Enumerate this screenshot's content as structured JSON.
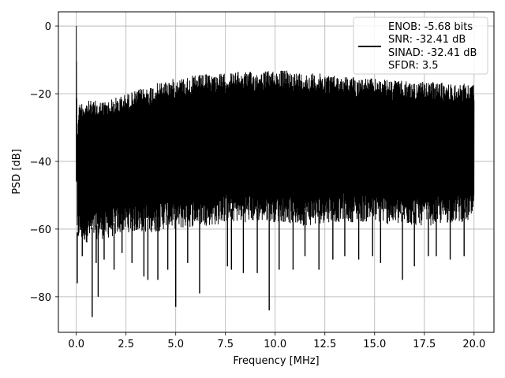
{
  "chart_data": {
    "type": "line",
    "title": "",
    "xlabel": "Frequency [MHz]",
    "ylabel": "PSD [dB]",
    "xlim": [
      -0.9,
      21.0
    ],
    "ylim": [
      -90.5,
      4.2
    ],
    "x_ticks": [
      0.0,
      2.5,
      5.0,
      7.5,
      10.0,
      12.5,
      15.0,
      17.5,
      20.0
    ],
    "x_tick_labels": [
      "0.0",
      "2.5",
      "5.0",
      "7.5",
      "10.0",
      "12.5",
      "15.0",
      "17.5",
      "20.0"
    ],
    "y_ticks": [
      0,
      -20,
      -40,
      -60,
      -80
    ],
    "y_tick_labels": [
      "0",
      "−20",
      "−40",
      "−60",
      "−80"
    ],
    "grid": true,
    "legend_position": "top-right",
    "series": [
      {
        "name": "",
        "color": "#000000",
        "x": [
          0.0,
          0.0,
          0.05,
          0.1,
          0.3,
          0.6,
          1.0,
          1.5,
          2.0,
          2.5,
          3.0,
          3.5,
          4.0,
          4.5,
          5.0,
          5.5,
          6.0,
          7.0,
          7.5,
          8.0,
          9.0,
          10.0,
          10.5,
          11.0,
          12.0,
          12.5,
          13.0,
          14.0,
          15.0,
          16.0,
          17.0,
          18.0,
          19.0,
          20.0
        ],
        "upper": [
          -46,
          0,
          -33,
          -23,
          -22,
          -22,
          -22,
          -22,
          -21,
          -20,
          -19,
          -18,
          -17,
          -16,
          -15.5,
          -15,
          -14.5,
          -14,
          -14,
          -13.5,
          -13.5,
          -13,
          -13,
          -13.5,
          -14,
          -14,
          -14.5,
          -15,
          -15.5,
          -16,
          -16.5,
          -16.5,
          -17,
          -17
        ],
        "lower": [
          -46,
          -30,
          -65,
          -63,
          -64,
          -64,
          -63,
          -63,
          -62,
          -61,
          -61,
          -61,
          -61,
          -60,
          -60,
          -60,
          -59,
          -59,
          -58,
          -58,
          -58,
          -58,
          -58,
          -59,
          -59,
          -58,
          -58,
          -58,
          -58,
          -59,
          -59,
          -59,
          -58,
          -58
        ],
        "spikes": [
          [
            0.05,
            -76
          ],
          [
            0.1,
            -62
          ],
          [
            0.3,
            -68
          ],
          [
            0.8,
            -86
          ],
          [
            1.0,
            -70
          ],
          [
            1.1,
            -80
          ],
          [
            1.4,
            -69
          ],
          [
            1.9,
            -72
          ],
          [
            2.3,
            -67
          ],
          [
            2.8,
            -70
          ],
          [
            3.4,
            -74
          ],
          [
            3.6,
            -75
          ],
          [
            4.1,
            -75
          ],
          [
            4.6,
            -72
          ],
          [
            5.0,
            -83
          ],
          [
            5.6,
            -70
          ],
          [
            6.2,
            -79
          ],
          [
            7.6,
            -71
          ],
          [
            7.8,
            -72
          ],
          [
            8.4,
            -73
          ],
          [
            9.1,
            -73
          ],
          [
            9.7,
            -84
          ],
          [
            10.2,
            -72
          ],
          [
            10.9,
            -72
          ],
          [
            11.5,
            -68
          ],
          [
            12.2,
            -72
          ],
          [
            12.9,
            -69
          ],
          [
            13.5,
            -68
          ],
          [
            14.2,
            -69
          ],
          [
            14.9,
            -68
          ],
          [
            15.3,
            -70
          ],
          [
            16.4,
            -75
          ],
          [
            17.0,
            -71
          ],
          [
            17.7,
            -68
          ],
          [
            18.1,
            -68
          ],
          [
            18.8,
            -69
          ],
          [
            19.5,
            -68
          ]
        ]
      }
    ],
    "legend_entries": [
      "ENOB: -5.68 bits",
      "SNR: -32.41 dB",
      "SINAD: -32.41 dB",
      "SFDR: 3.5"
    ]
  }
}
